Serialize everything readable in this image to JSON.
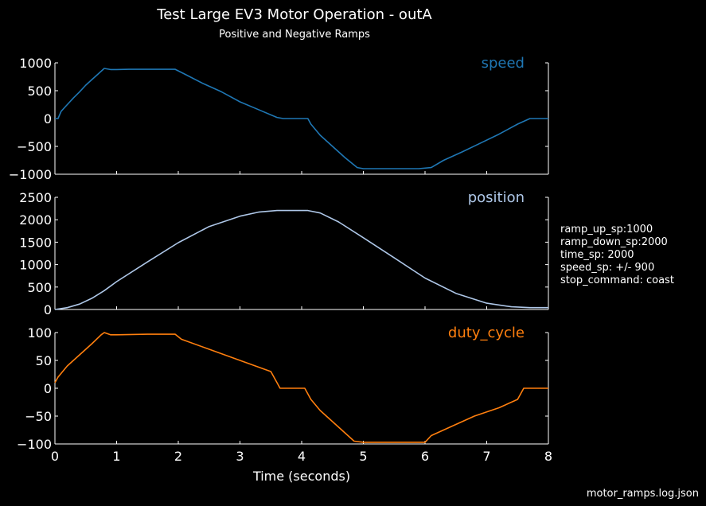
{
  "title": "Test Large EV3 Motor Operation - outA",
  "subtitle": "Positive and Negative Ramps",
  "xlabel": "Time (seconds)",
  "footer": "motor_ramps.log.json",
  "settings": [
    "ramp_up_sp:1000",
    "ramp_down_sp:2000",
    "time_sp: 2000",
    "speed_sp: +/- 900",
    "stop_command: coast"
  ],
  "chart_data": [
    {
      "type": "line",
      "name": "speed",
      "color": "#1f77b4",
      "xlim": [
        0,
        8
      ],
      "ylim": [
        -1000,
        1000
      ],
      "yticks": [
        -1000,
        -500,
        0,
        500,
        1000
      ],
      "x": [
        0,
        0.05,
        0.1,
        0.2,
        0.3,
        0.4,
        0.5,
        0.6,
        0.7,
        0.8,
        0.9,
        1.0,
        1.2,
        1.4,
        1.6,
        1.8,
        1.95,
        2.1,
        2.4,
        2.7,
        3.0,
        3.3,
        3.6,
        3.7,
        3.9,
        4.1,
        4.15,
        4.3,
        4.5,
        4.7,
        4.9,
        5.0,
        5.5,
        5.9,
        6.1,
        6.3,
        6.6,
        6.9,
        7.2,
        7.5,
        7.7,
        8.0
      ],
      "y": [
        0,
        0,
        130,
        250,
        370,
        480,
        600,
        700,
        800,
        900,
        880,
        880,
        885,
        885,
        885,
        885,
        885,
        800,
        630,
        480,
        300,
        160,
        20,
        0,
        0,
        0,
        -100,
        -300,
        -500,
        -700,
        -880,
        -900,
        -900,
        -900,
        -880,
        -750,
        -600,
        -440,
        -280,
        -100,
        0,
        0
      ]
    },
    {
      "type": "line",
      "name": "position",
      "color": "#aec7e8",
      "xlim": [
        0,
        8
      ],
      "ylim": [
        0,
        2500
      ],
      "yticks": [
        0,
        500,
        1000,
        1500,
        2000,
        2500
      ],
      "x": [
        0,
        0.2,
        0.4,
        0.6,
        0.8,
        1.0,
        1.5,
        2.0,
        2.5,
        3.0,
        3.3,
        3.6,
        3.8,
        4.1,
        4.3,
        4.6,
        5.0,
        5.5,
        6.0,
        6.5,
        7.0,
        7.4,
        7.7,
        8.0
      ],
      "y": [
        0,
        40,
        120,
        250,
        420,
        620,
        1060,
        1490,
        1850,
        2080,
        2170,
        2205,
        2205,
        2205,
        2150,
        1950,
        1600,
        1150,
        700,
        360,
        140,
        60,
        40,
        40
      ]
    },
    {
      "type": "line",
      "name": "duty_cycle",
      "color": "#ff7f0e",
      "xlim": [
        0,
        8
      ],
      "ylim": [
        -100,
        100
      ],
      "yticks": [
        -100,
        -50,
        0,
        50,
        100
      ],
      "x": [
        0,
        0.05,
        0.2,
        0.4,
        0.6,
        0.75,
        0.8,
        0.9,
        1.0,
        1.5,
        1.95,
        2.05,
        2.5,
        3.0,
        3.5,
        3.65,
        4.05,
        4.15,
        4.3,
        4.5,
        4.7,
        4.85,
        5.0,
        5.5,
        6.0,
        6.1,
        6.4,
        6.8,
        7.2,
        7.5,
        7.6,
        8.0
      ],
      "y": [
        10,
        20,
        40,
        60,
        80,
        96,
        100,
        96,
        96,
        97,
        97,
        88,
        70,
        50,
        30,
        0,
        0,
        -20,
        -40,
        -60,
        -80,
        -95,
        -97,
        -97,
        -97,
        -85,
        -70,
        -50,
        -35,
        -20,
        0,
        0
      ]
    }
  ]
}
